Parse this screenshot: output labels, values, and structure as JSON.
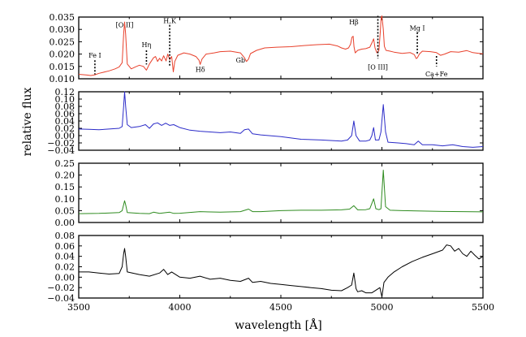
{
  "xlabel": "wavelength [Å]",
  "ylabel": "relative flux",
  "chart_data": [
    {
      "type": "line",
      "color": "#e8412c",
      "xlim": [
        3500,
        5500
      ],
      "ylim": [
        0.01,
        0.035
      ],
      "yticks": [
        "0.010",
        "0.015",
        "0.020",
        "0.025",
        "0.030",
        "0.035"
      ],
      "xticks": [],
      "series": [
        {
          "x": [
            3500,
            3540,
            3560,
            3580,
            3600,
            3620,
            3650,
            3680,
            3700,
            3715,
            3722,
            3727,
            3732,
            3740,
            3760,
            3780,
            3800,
            3820,
            3835,
            3850,
            3870,
            3880,
            3890,
            3900,
            3910,
            3920,
            3932,
            3940,
            3950,
            3960,
            3968,
            3975,
            3990,
            4020,
            4050,
            4080,
            4095,
            4101,
            4110,
            4130,
            4170,
            4200,
            4250,
            4300,
            4320,
            4330,
            4340,
            4350,
            4380,
            4420,
            4480,
            4550,
            4620,
            4680,
            4740,
            4780,
            4800,
            4820,
            4835,
            4845,
            4852,
            4858,
            4862,
            4868,
            4880,
            4900,
            4920,
            4940,
            4950,
            4959,
            4966,
            4975,
            4985,
            4992,
            4996,
            5000,
            5007,
            5012,
            5020,
            5040,
            5060,
            5100,
            5140,
            5160,
            5170,
            5175,
            5185,
            5200,
            5240,
            5270,
            5290,
            5310,
            5340,
            5380,
            5420,
            5450,
            5480,
            5500
          ],
          "y": [
            0.0118,
            0.0115,
            0.0113,
            0.0116,
            0.0122,
            0.0126,
            0.0132,
            0.014,
            0.0148,
            0.0165,
            0.028,
            0.033,
            0.028,
            0.016,
            0.014,
            0.0148,
            0.0155,
            0.015,
            0.0135,
            0.016,
            0.0185,
            0.019,
            0.017,
            0.0183,
            0.0172,
            0.0193,
            0.0172,
            0.02,
            0.0178,
            0.019,
            0.0128,
            0.017,
            0.0195,
            0.0205,
            0.02,
            0.019,
            0.0175,
            0.0158,
            0.018,
            0.02,
            0.0205,
            0.021,
            0.0212,
            0.0205,
            0.0185,
            0.017,
            0.018,
            0.0202,
            0.0215,
            0.0225,
            0.0228,
            0.023,
            0.0235,
            0.0238,
            0.024,
            0.0233,
            0.0225,
            0.022,
            0.0225,
            0.024,
            0.0268,
            0.0272,
            0.023,
            0.0205,
            0.0215,
            0.022,
            0.0222,
            0.0228,
            0.0245,
            0.0262,
            0.0225,
            0.0205,
            0.0215,
            0.029,
            0.0346,
            0.0355,
            0.03,
            0.0232,
            0.0215,
            0.0212,
            0.0208,
            0.0203,
            0.0206,
            0.0198,
            0.0182,
            0.0185,
            0.02,
            0.0212,
            0.021,
            0.0206,
            0.0195,
            0.02,
            0.021,
            0.0208,
            0.0214,
            0.0206,
            0.0203,
            0.0201
          ]
        }
      ],
      "annotations": [
        {
          "label": "Fe I",
          "x": 3580,
          "y": 0.0195,
          "line_from": 0.0175,
          "line_to": 0.0118
        },
        {
          "label": "[O II]",
          "x": 3727,
          "y": 0.0318,
          "line_from": null,
          "line_to": null
        },
        {
          "label": "Hη",
          "x": 3835,
          "y": 0.0238,
          "line_from": 0.0215,
          "line_to": 0.0158
        },
        {
          "label": "H,K",
          "x": 3950,
          "y": 0.0335,
          "line_from": 0.0318,
          "line_to": 0.0148
        },
        {
          "label": "Hδ",
          "x": 4101,
          "y": 0.0138,
          "line_from": null,
          "line_to": null
        },
        {
          "label": "Gb",
          "x": 4300,
          "y": 0.0175,
          "line_from": null,
          "line_to": null
        },
        {
          "label": "Hβ",
          "x": 4861,
          "y": 0.033,
          "line_from": null,
          "line_to": null
        },
        {
          "label": "[O III]",
          "x": 4980,
          "y": 0.0148,
          "line_from": 0.0355,
          "line_to": 0.0182
        },
        {
          "label": "Mg I",
          "x": 5175,
          "y": 0.0305,
          "line_from": 0.0288,
          "line_to": 0.0198
        },
        {
          "label": "Ca+Fe",
          "x": 5270,
          "y": 0.012,
          "line_from": 0.0192,
          "line_to": 0.015
        }
      ]
    },
    {
      "type": "line",
      "color": "#2b2bc8",
      "xlim": [
        3500,
        5500
      ],
      "ylim": [
        -0.04,
        0.12
      ],
      "yticks": [
        "−0.04",
        "−0.02",
        "0.00",
        "0.02",
        "0.04",
        "0.06",
        "0.08",
        "0.10",
        "0.12"
      ],
      "xticks": [],
      "series": [
        {
          "x": [
            3500,
            3550,
            3600,
            3650,
            3700,
            3715,
            3722,
            3727,
            3732,
            3740,
            3760,
            3800,
            3830,
            3850,
            3870,
            3890,
            3910,
            3930,
            3950,
            3970,
            4000,
            4050,
            4100,
            4150,
            4200,
            4250,
            4300,
            4320,
            4340,
            4360,
            4400,
            4500,
            4600,
            4700,
            4800,
            4830,
            4850,
            4861,
            4872,
            4890,
            4920,
            4940,
            4950,
            4959,
            4968,
            4985,
            4995,
            5007,
            5018,
            5030,
            5080,
            5120,
            5160,
            5180,
            5200,
            5250,
            5300,
            5350,
            5400,
            5450,
            5500
          ],
          "y": [
            0.018,
            0.017,
            0.016,
            0.018,
            0.02,
            0.025,
            0.08,
            0.12,
            0.08,
            0.03,
            0.022,
            0.025,
            0.03,
            0.02,
            0.032,
            0.035,
            0.028,
            0.034,
            0.028,
            0.03,
            0.022,
            0.015,
            0.012,
            0.01,
            0.008,
            0.01,
            0.006,
            0.016,
            0.018,
            0.005,
            0.002,
            -0.003,
            -0.01,
            -0.012,
            -0.015,
            -0.012,
            0.0,
            0.04,
            0.0,
            -0.015,
            -0.015,
            -0.012,
            0.0,
            0.022,
            -0.012,
            -0.012,
            0.01,
            0.085,
            0.01,
            -0.018,
            -0.02,
            -0.022,
            -0.025,
            -0.015,
            -0.025,
            -0.025,
            -0.028,
            -0.025,
            -0.03,
            -0.032,
            -0.03
          ]
        }
      ]
    },
    {
      "type": "line",
      "color": "#2e8b1f",
      "xlim": [
        3500,
        5500
      ],
      "ylim": [
        -0.05,
        0.25
      ],
      "yticks": [
        "0.00",
        "0.05",
        "0.10",
        "0.15",
        "0.20",
        "0.25"
      ],
      "xticks": [],
      "series": [
        {
          "x": [
            3500,
            3600,
            3700,
            3715,
            3722,
            3727,
            3732,
            3740,
            3800,
            3850,
            3870,
            3900,
            3950,
            3970,
            4000,
            4100,
            4200,
            4300,
            4340,
            4360,
            4400,
            4500,
            4600,
            4700,
            4800,
            4840,
            4861,
            4880,
            4920,
            4940,
            4959,
            4970,
            4985,
            4995,
            5007,
            5018,
            5040,
            5100,
            5200,
            5300,
            5400,
            5500
          ],
          "y": [
            -0.005,
            -0.004,
            0.0,
            0.01,
            0.04,
            0.06,
            0.04,
            0.0,
            -0.004,
            -0.005,
            0.002,
            -0.004,
            0.002,
            -0.004,
            -0.003,
            0.005,
            0.002,
            0.005,
            0.018,
            0.005,
            0.005,
            0.01,
            0.012,
            0.012,
            0.014,
            0.018,
            0.035,
            0.014,
            0.015,
            0.02,
            0.07,
            0.02,
            0.015,
            0.02,
            0.215,
            0.03,
            0.012,
            0.01,
            0.008,
            0.006,
            0.005,
            0.004
          ]
        }
      ]
    },
    {
      "type": "line",
      "color": "#000000",
      "xlim": [
        3500,
        5500
      ],
      "ylim": [
        -0.04,
        0.08
      ],
      "yticks": [
        "−0.04",
        "−0.02",
        "0.00",
        "0.02",
        "0.04",
        "0.06",
        "0.08"
      ],
      "xticks": [
        "3500",
        "4000",
        "4500",
        "5000",
        "5500"
      ],
      "series": [
        {
          "x": [
            3500,
            3550,
            3600,
            3650,
            3700,
            3715,
            3722,
            3727,
            3732,
            3740,
            3800,
            3850,
            3900,
            3920,
            3940,
            3960,
            4000,
            4050,
            4100,
            4150,
            4200,
            4250,
            4300,
            4340,
            4360,
            4400,
            4450,
            4500,
            4550,
            4600,
            4650,
            4700,
            4750,
            4800,
            4830,
            4850,
            4861,
            4872,
            4880,
            4900,
            4920,
            4950,
            4970,
            4990,
            5000,
            5010,
            5030,
            5060,
            5100,
            5150,
            5200,
            5250,
            5300,
            5320,
            5340,
            5360,
            5380,
            5400,
            5420,
            5440,
            5460,
            5480,
            5500
          ],
          "y": [
            0.01,
            0.01,
            0.008,
            0.006,
            0.007,
            0.02,
            0.045,
            0.055,
            0.04,
            0.01,
            0.005,
            0.002,
            0.008,
            0.015,
            0.005,
            0.01,
            0.0,
            -0.002,
            0.002,
            -0.004,
            -0.002,
            -0.006,
            -0.008,
            -0.002,
            -0.01,
            -0.008,
            -0.012,
            -0.014,
            -0.016,
            -0.018,
            -0.02,
            -0.022,
            -0.025,
            -0.026,
            -0.02,
            -0.015,
            0.008,
            -0.022,
            -0.028,
            -0.026,
            -0.03,
            -0.03,
            -0.025,
            -0.02,
            -0.038,
            -0.01,
            0.0,
            0.01,
            0.02,
            0.03,
            0.038,
            0.045,
            0.052,
            0.062,
            0.06,
            0.05,
            0.055,
            0.045,
            0.04,
            0.05,
            0.042,
            0.035,
            0.04
          ]
        }
      ]
    }
  ]
}
